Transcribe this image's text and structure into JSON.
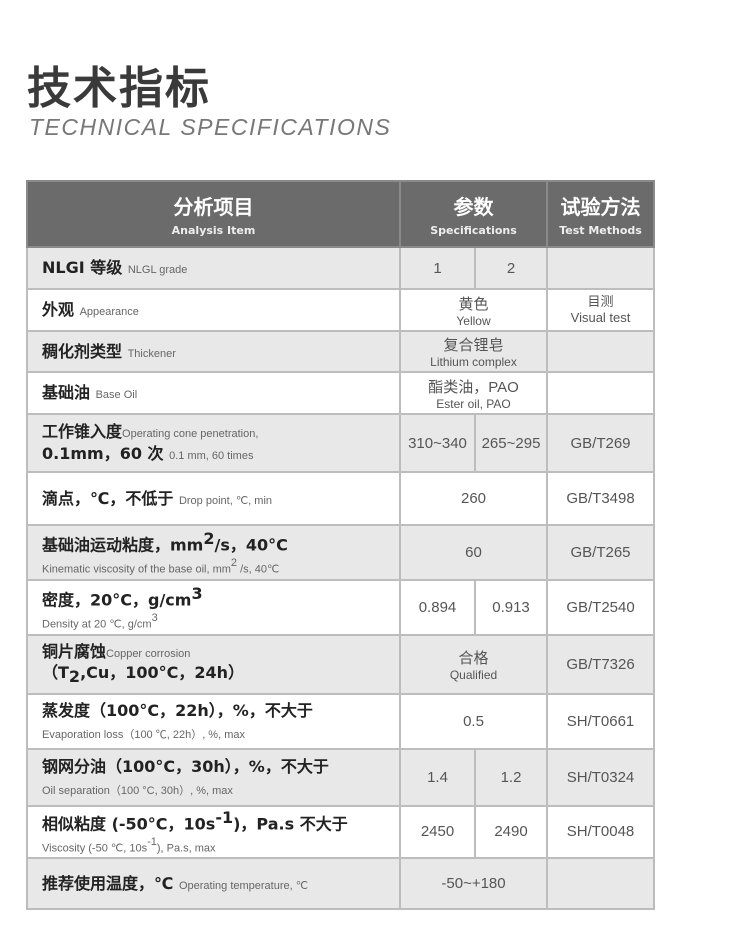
{
  "title": {
    "cn": "技术指标",
    "en": "TECHNICAL SPECIFICATIONS"
  },
  "header": {
    "item_cn": "分析项目",
    "item_en": "Analysis Item",
    "spec_cn": "参数",
    "spec_en": "Specifications",
    "method_cn": "试验方法",
    "method_en": "Test Methods"
  },
  "rows": [
    {
      "lines": [
        [
          {
            "t": "NLGI 等级 ",
            "c": "cn"
          },
          {
            "t": "NLGL grade",
            "c": "en"
          }
        ]
      ],
      "values": [
        "1",
        "2"
      ],
      "method": ""
    },
    {
      "lines": [
        [
          {
            "t": "外观 ",
            "c": "cn"
          },
          {
            "t": "Appearance",
            "c": "en"
          }
        ]
      ],
      "merged": [
        "黄色",
        "Yellow"
      ],
      "method": "目测|Visual test"
    },
    {
      "lines": [
        [
          {
            "t": "稠化剂类型 ",
            "c": "cn"
          },
          {
            "t": "Thickener",
            "c": "en"
          }
        ]
      ],
      "merged": [
        "复合锂皂",
        "Lithium complex"
      ],
      "method": ""
    },
    {
      "lines": [
        [
          {
            "t": "基础油 ",
            "c": "cn"
          },
          {
            "t": "Base Oil",
            "c": "en"
          }
        ]
      ],
      "merged": [
        "酯类油，PAO",
        "Ester oil, PAO"
      ],
      "method": ""
    },
    {
      "lines": [
        [
          {
            "t": "工作锥入度",
            "c": "cn"
          },
          {
            "t": "Operating cone penetration,",
            "c": "en"
          }
        ],
        [
          {
            "t": "0.1mm，60 次 ",
            "c": "cn"
          },
          {
            "t": "0.1 mm, 60 times",
            "c": "en"
          }
        ]
      ],
      "values": [
        "310~340",
        "265~295"
      ],
      "method": "GB/T269"
    },
    {
      "lines": [
        [
          {
            "t": "滴点，℃，不低于 ",
            "c": "cn"
          },
          {
            "t": "Drop point, ℃, min",
            "c": "en"
          }
        ]
      ],
      "merged": [
        "260"
      ],
      "method": "GB/T3498"
    },
    {
      "lines": [
        [
          {
            "t": "基础油运动粘度，mm",
            "c": "cn"
          },
          {
            "t": "2",
            "c": "cn",
            "sup": true
          },
          {
            "t": "/s，40°C",
            "c": "cn"
          }
        ],
        [
          {
            "t": "Kinematic viscosity of the base oil, mm",
            "c": "en"
          },
          {
            "t": "2",
            "c": "en",
            "sup": true
          },
          {
            "t": " /s, 40℃",
            "c": "en"
          }
        ]
      ],
      "merged": [
        "60"
      ],
      "method": "GB/T265"
    },
    {
      "lines": [
        [
          {
            "t": "密度，20°C，g/cm",
            "c": "cn"
          },
          {
            "t": "3",
            "c": "cn",
            "sup": true
          }
        ],
        [
          {
            "t": "Density at 20 ℃, g/cm",
            "c": "en"
          },
          {
            "t": "3",
            "c": "en",
            "sup": true
          }
        ]
      ],
      "values": [
        "0.894",
        "0.913"
      ],
      "method": "GB/T2540"
    },
    {
      "lines": [
        [
          {
            "t": "铜片腐蚀",
            "c": "cn"
          },
          {
            "t": "Copper corrosion",
            "c": "en"
          }
        ],
        [
          {
            "t": "（T",
            "c": "cn"
          },
          {
            "t": "2",
            "c": "cn",
            "sub": true
          },
          {
            "t": ",Cu，100°C，24h）",
            "c": "cn"
          }
        ]
      ],
      "merged": [
        "合格",
        "Qualified"
      ],
      "method": "GB/T7326"
    },
    {
      "lines": [
        [
          {
            "t": "蒸发度（100°C，22h），%，不大于",
            "c": "cn"
          }
        ],
        [
          {
            "t": "Evaporation loss（100 ℃, 22h）, %, max",
            "c": "en"
          }
        ]
      ],
      "merged": [
        "0.5"
      ],
      "method": "SH/T0661"
    },
    {
      "lines": [
        [
          {
            "t": "钢网分油（100°C，30h），%，不大于",
            "c": "cn"
          }
        ],
        [
          {
            "t": "Oil separation（100 °C, 30h）, %, max",
            "c": "en"
          }
        ]
      ],
      "values": [
        "1.4",
        "1.2"
      ],
      "method": "SH/T0324"
    },
    {
      "lines": [
        [
          {
            "t": "相似粘度 (-50°C，10s",
            "c": "cn"
          },
          {
            "t": "-1",
            "c": "cn",
            "sup": true
          },
          {
            "t": ")，Pa.s 不大于",
            "c": "cn"
          }
        ],
        [
          {
            "t": "Viscosity (-50 ℃, 10s",
            "c": "en"
          },
          {
            "t": "-1",
            "c": "en",
            "sup": true
          },
          {
            "t": "), Pa.s, max",
            "c": "en"
          }
        ]
      ],
      "values": [
        "2450",
        "2490"
      ],
      "method": "SH/T0048"
    },
    {
      "lines": [
        [
          {
            "t": "推荐使用温度，℃ ",
            "c": "cn"
          },
          {
            "t": "Operating temperature, ℃",
            "c": "en"
          }
        ]
      ],
      "merged": [
        "-50~+180"
      ],
      "method": ""
    }
  ]
}
